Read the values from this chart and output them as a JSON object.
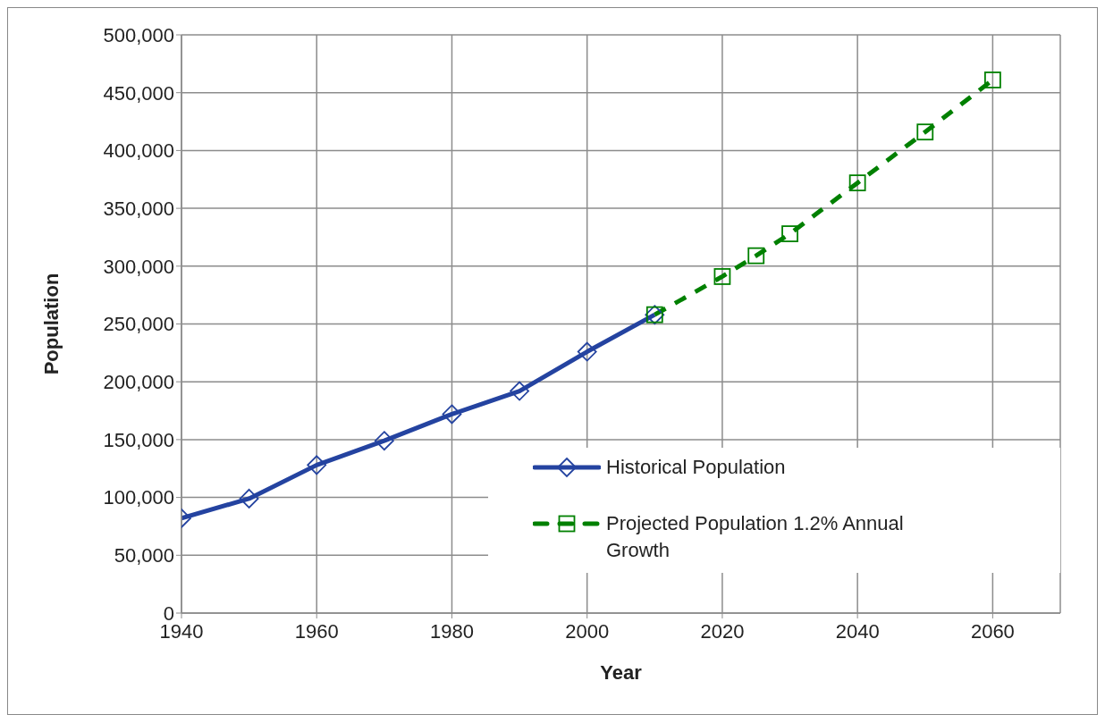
{
  "chart_data": {
    "type": "line",
    "xlabel": "Year",
    "ylabel": "Population",
    "xlim": [
      1940,
      2070
    ],
    "xticks": [
      1940,
      1960,
      1980,
      2000,
      2020,
      2040,
      2060
    ],
    "ylim": [
      0,
      500000
    ],
    "yticks": [
      0,
      {
        "value": 50000,
        "label": "50,000"
      },
      {
        "value": 100000,
        "label": "100,000"
      },
      {
        "value": 150000,
        "label": "150,000"
      },
      {
        "value": 200000,
        "label": "200,000"
      },
      {
        "value": 250000,
        "label": "250,000"
      },
      {
        "value": 300000,
        "label": "300,000"
      },
      {
        "value": 350000,
        "label": "350,000"
      },
      {
        "value": 400000,
        "label": "400,000"
      },
      {
        "value": 450000,
        "label": "450,000"
      },
      {
        "value": 500000,
        "label": "500,000"
      }
    ],
    "grid": true,
    "legend": "bottom right",
    "series": [
      {
        "name": "Historical Population",
        "color": "#2443a0",
        "marker": "diamond",
        "line_style": "solid",
        "x": [
          1940,
          1950,
          1960,
          1970,
          1980,
          1990,
          2000,
          2010
        ],
        "values": [
          82000,
          99000,
          128000,
          149000,
          172000,
          192000,
          226000,
          258000
        ]
      },
      {
        "name": "Projected Population 1.2% Annual Growth",
        "color": "#008000",
        "marker": "square",
        "line_style": "dashed",
        "x": [
          2010,
          2020,
          2025,
          2030,
          2040,
          2050,
          2060
        ],
        "values": [
          258000,
          291000,
          309000,
          328000,
          372000,
          416000,
          461000
        ]
      }
    ]
  }
}
